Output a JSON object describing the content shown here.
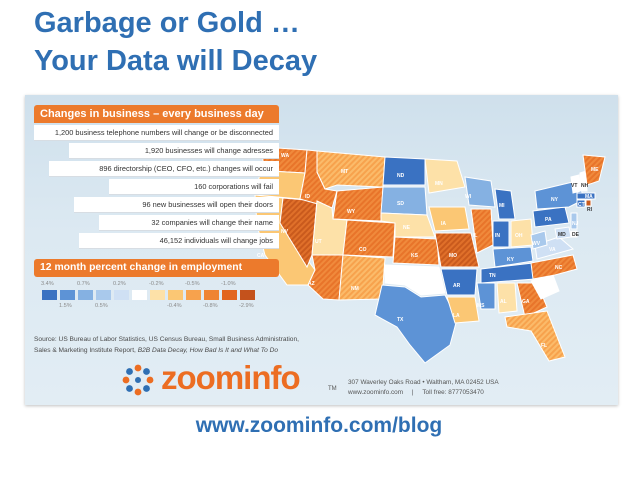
{
  "title_line1": "Garbage or Gold …",
  "title_line2": "Your Data will Decay",
  "infographic": {
    "panel_title": "Changes in business – every business day",
    "stats": [
      "1,200 business telephone numbers will change or be disconnected",
      "1,920 businesses will change adresses",
      "896 directorship (CEO, CFO, etc.) changes will occur",
      "160 corporations will fail",
      "96 new businesses will open their doors",
      "32 companies will change their name",
      "46,152 individuals will change jobs"
    ],
    "employment_title": "12 month percent change in employment",
    "legend": [
      {
        "label": "3.4%",
        "color": "#3a72c2"
      },
      {
        "label": "1.5%",
        "color": "#5d93d6"
      },
      {
        "label": "0.7%",
        "color": "#85b1e2"
      },
      {
        "label": "0.5%",
        "color": "#a9c9ec"
      },
      {
        "label": "0.2%",
        "color": "#cfe0f4"
      },
      {
        "label": "",
        "color": "#ffffff"
      },
      {
        "label": "-0.2%",
        "color": "#fde1a8"
      },
      {
        "label": "-0.4%",
        "color": "#fbc774"
      },
      {
        "label": "-0.5%",
        "color": "#f7a24d"
      },
      {
        "label": "-0.8%",
        "color": "#ef8433"
      },
      {
        "label": "-1.0%",
        "color": "#e2651f"
      },
      {
        "label": "-2.9%",
        "color": "#c4521c"
      }
    ],
    "source_line1": "Source: US Bureau of Labor Statistics, US Census Bureau, Small Business Administration,",
    "source_line2_prefix": "Sales & Marketing Institute Report, ",
    "source_line2_italic": "B2B Data Decay, How Bad Is It and What To Do",
    "logo_text": "zoominfo",
    "logo_tm": "TM",
    "address_line1": "307 Waverley Oaks Road • Waltham, MA 02452 USA",
    "address_line2": "www.zoominfo.com     |     Toll free: 8777053470",
    "states": {
      "WA": "WA",
      "OR": "OR",
      "CA": "CA",
      "NV": "NV",
      "ID": "ID",
      "MT": "MT",
      "WY": "WY",
      "UT": "UT",
      "AZ": "AZ",
      "CO": "CO",
      "NM": "NM",
      "ND": "ND",
      "SD": "SD",
      "NE": "NE",
      "KS": "KS",
      "OK": "OK",
      "TX": "TX",
      "MN": "MN",
      "IA": "IA",
      "MO": "MO",
      "AR": "AR",
      "LA": "LA",
      "WI": "WI",
      "IL": "IL",
      "MI": "MI",
      "IN": "IN",
      "OH": "OH",
      "KY": "KY",
      "TN": "TN",
      "MS": "MS",
      "AL": "AL",
      "GA": "GA",
      "FL": "FL",
      "SC": "SC",
      "NC": "NC",
      "VA": "VA",
      "WV": "WV",
      "PA": "PA",
      "NY": "NY",
      "VT": "VT",
      "NH": "NH",
      "ME": "ME",
      "MA": "MA",
      "NJ": "NJ",
      "MD": "MD",
      "CT": "CT",
      "DE": "DE",
      "RI": "RI"
    }
  },
  "footer_url": "www.zoominfo.com/blog",
  "colors": {
    "title": "#2f6fb3",
    "accent": "#ec7a2c"
  }
}
